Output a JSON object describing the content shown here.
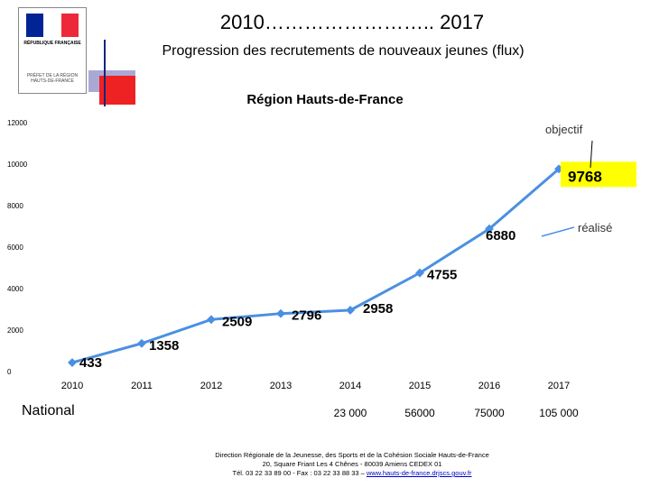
{
  "header": {
    "title": "2010…………………….. 2017",
    "subtitle": "Progression des recrutements de nouveaux jeunes (flux)",
    "region": "Région Hauts-de-France"
  },
  "logo": {
    "republic": "RÉPUBLIQUE FRANÇAISE",
    "prefect": "PRÉFET DE LA RÉGION HAUTS-DE-FRANCE",
    "colors": [
      "#002395",
      "#ffffff",
      "#ed2939"
    ]
  },
  "chart_data": {
    "type": "line",
    "title": "Région Hauts-de-France",
    "categories": [
      "2010",
      "2011",
      "2012",
      "2013",
      "2014",
      "2015",
      "2016",
      "2017"
    ],
    "series": [
      {
        "name": "réalisé",
        "values": [
          433,
          1358,
          2509,
          2796,
          2958,
          4755,
          6880,
          9768
        ],
        "color": "#4a90e2"
      }
    ],
    "yticks": [
      0,
      2000,
      4000,
      6000,
      8000,
      10000,
      12000
    ],
    "ylim": [
      0,
      12000
    ],
    "grid": false,
    "annotations": {
      "objectif": "objectif",
      "realise": "réalisé"
    },
    "highlight_value": "9768",
    "highlight_color": "#ffff00"
  },
  "national": {
    "label": "National",
    "values": [
      {
        "year": "2014",
        "value": "23 000"
      },
      {
        "year": "2015",
        "value": "56000"
      },
      {
        "year": "2016",
        "value": "75000"
      },
      {
        "year": "2017",
        "value": "105 000"
      }
    ]
  },
  "footer": {
    "line1": "Direction Régionale de la Jeunesse, des Sports et de la Cohésion Sociale Hauts-de-France",
    "line2": "20, Square Friant Les 4 Chênes - 80039 Amiens CEDEX 01",
    "line3": "Tél. 03 22 33 89 00 - Fax : 03 22 33 88 33 –",
    "link": "www.hauts-de-france.drjscs.gouv.fr"
  }
}
